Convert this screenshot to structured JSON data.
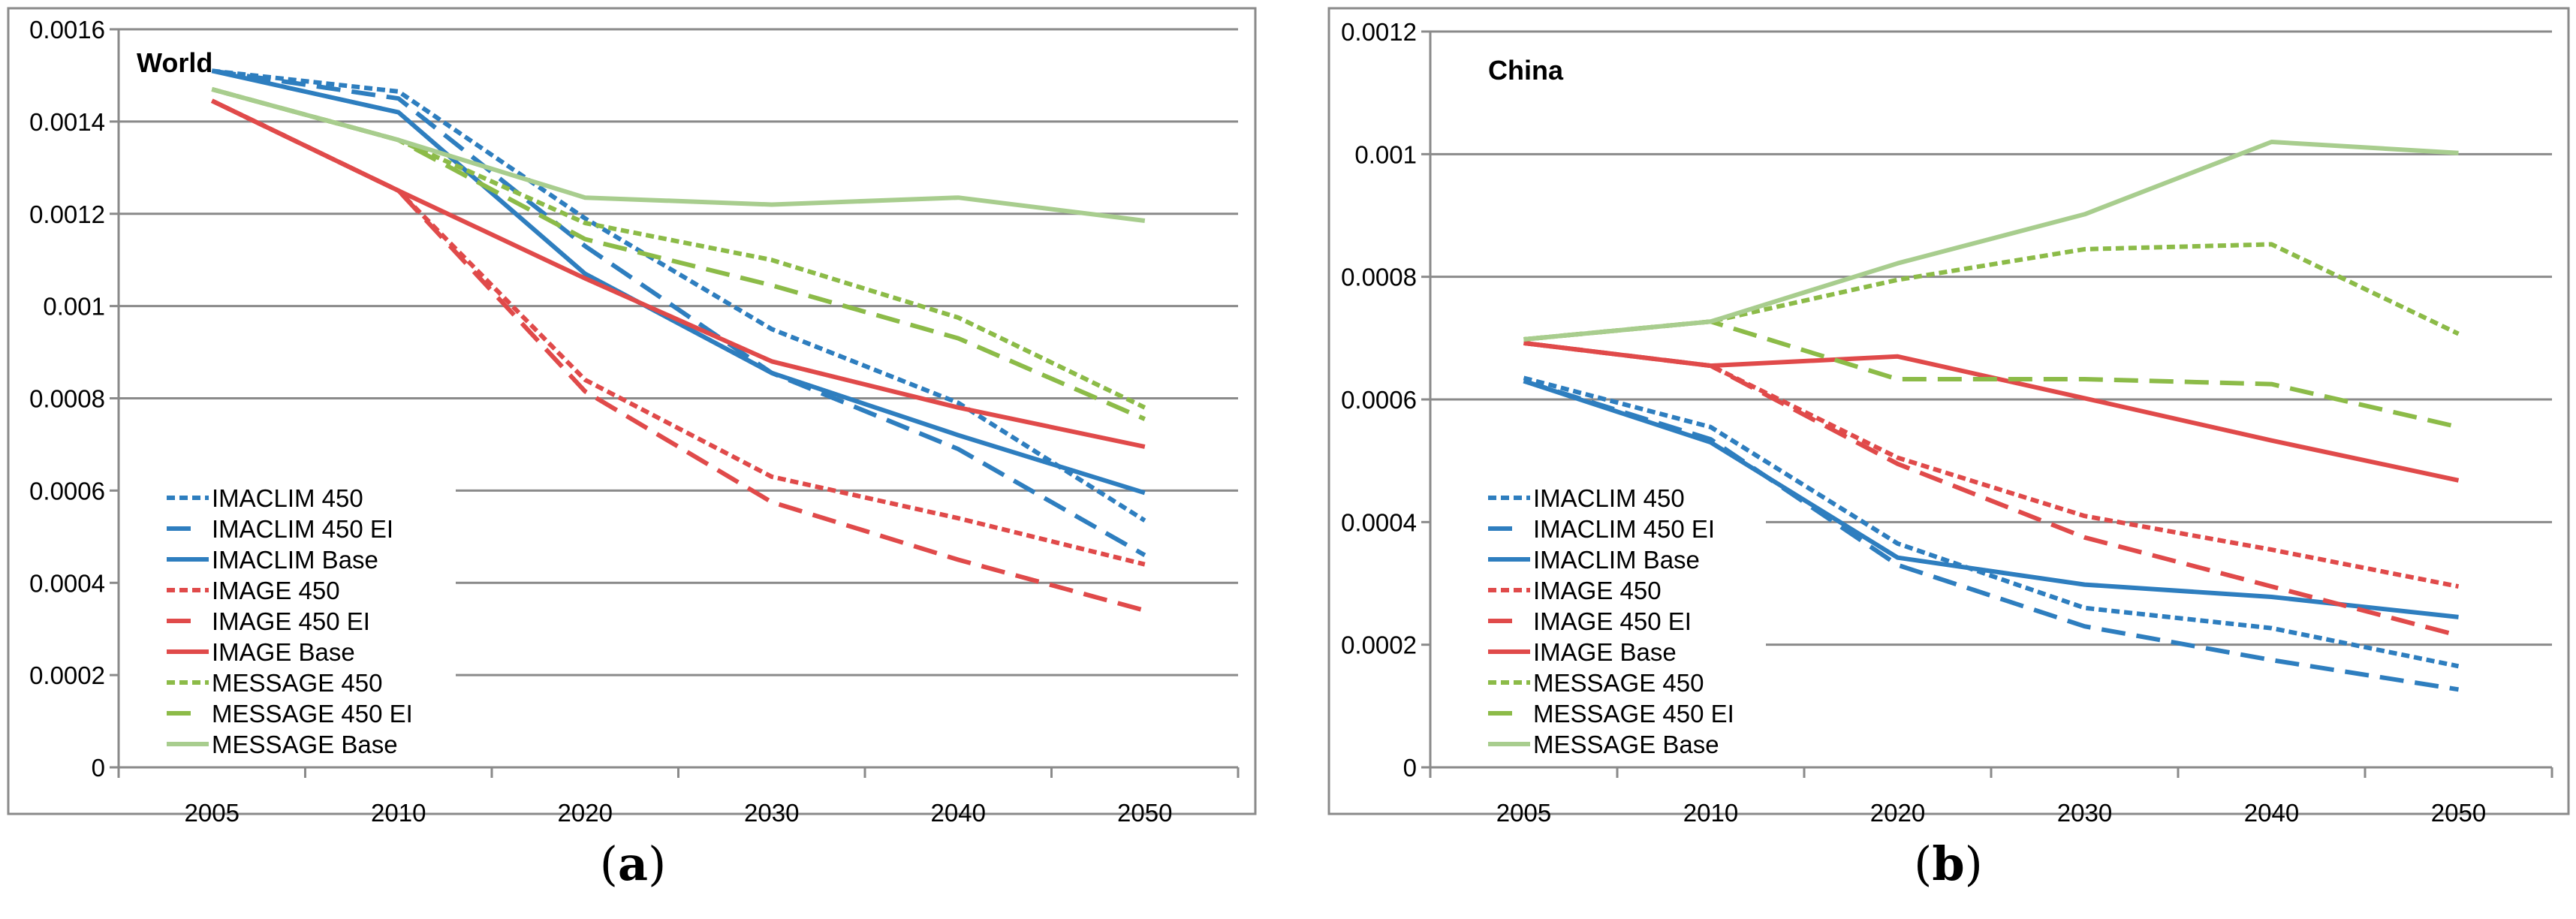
{
  "chart_data": [
    {
      "type": "line",
      "panel": "a",
      "title": "World",
      "panel_label": {
        "open": "(",
        "letter": "a",
        "close": ")"
      },
      "xlabel": "",
      "ylabel": "",
      "categories": [
        "2005",
        "2010",
        "2020",
        "2030",
        "2040",
        "2050"
      ],
      "ylim": [
        0,
        0.0016
      ],
      "yticks": [
        0,
        0.0002,
        0.0004,
        0.0006,
        0.0008,
        0.001,
        0.0012,
        0.0014,
        0.0016
      ],
      "ytick_labels": [
        "0",
        "0.0002",
        "0.0004",
        "0.0006",
        "0.0008",
        "0.001",
        "0.0012",
        "0.0014",
        "0.0016"
      ],
      "grid": true,
      "legend_position": "bottom-left",
      "series": [
        {
          "name": "IMACLIM 450",
          "color": "#2e7ebf",
          "style": "dotted",
          "values": [
            0.00151,
            0.001465,
            0.00119,
            0.00095,
            0.00079,
            0.000535
          ]
        },
        {
          "name": "IMACLIM 450 EI",
          "color": "#2e7ebf",
          "style": "dashed",
          "values": [
            0.00151,
            0.00145,
            0.00113,
            0.000855,
            0.00069,
            0.00046
          ]
        },
        {
          "name": "IMACLIM Base",
          "color": "#2e7ebf",
          "style": "solid",
          "values": [
            0.00151,
            0.00142,
            0.00107,
            0.000855,
            0.00072,
            0.000595
          ]
        },
        {
          "name": "IMAGE 450",
          "color": "#e04a4a",
          "style": "dotted",
          "values": [
            0.001445,
            0.00125,
            0.00084,
            0.00063,
            0.00054,
            0.00044
          ]
        },
        {
          "name": "IMAGE 450 EI",
          "color": "#e04a4a",
          "style": "dashed",
          "values": [
            0.001445,
            0.00125,
            0.000815,
            0.000575,
            0.00045,
            0.00034
          ]
        },
        {
          "name": "IMAGE Base",
          "color": "#e04a4a",
          "style": "solid",
          "values": [
            0.001445,
            0.00125,
            0.00106,
            0.00088,
            0.00078,
            0.000695
          ]
        },
        {
          "name": "MESSAGE 450",
          "color": "#8cbb48",
          "style": "dotted",
          "values": [
            0.00147,
            0.00136,
            0.00118,
            0.0011,
            0.000975,
            0.00078
          ]
        },
        {
          "name": "MESSAGE 450 EI",
          "color": "#8cbb48",
          "style": "dashed",
          "values": [
            0.00147,
            0.00136,
            0.001145,
            0.001045,
            0.00093,
            0.000755
          ]
        },
        {
          "name": "MESSAGE Base",
          "color": "#a8cd8e",
          "style": "solid",
          "values": [
            0.00147,
            0.00136,
            0.001235,
            0.00122,
            0.001235,
            0.001185
          ]
        }
      ]
    },
    {
      "type": "line",
      "panel": "b",
      "title": "China",
      "panel_label": {
        "open": "(",
        "letter": "b",
        "close": ")"
      },
      "xlabel": "",
      "ylabel": "",
      "categories": [
        "2005",
        "2010",
        "2020",
        "2030",
        "2040",
        "2050"
      ],
      "ylim": [
        0,
        0.0012
      ],
      "yticks": [
        0,
        0.0002,
        0.0004,
        0.0006,
        0.0008,
        0.001,
        0.0012
      ],
      "ytick_labels": [
        "0",
        "0.0002",
        "0.0004",
        "0.0006",
        "0.0008",
        "0.001",
        "0.0012"
      ],
      "grid": true,
      "legend_position": "bottom-left",
      "series": [
        {
          "name": "IMACLIM 450",
          "color": "#2e7ebf",
          "style": "dotted",
          "values": [
            0.000635,
            0.000555,
            0.000365,
            0.00026,
            0.000227,
            0.000165
          ]
        },
        {
          "name": "IMACLIM 450 EI",
          "color": "#2e7ebf",
          "style": "dashed",
          "values": [
            0.00063,
            0.000535,
            0.00033,
            0.00023,
            0.000175,
            0.000127
          ]
        },
        {
          "name": "IMACLIM Base",
          "color": "#2e7ebf",
          "style": "solid",
          "values": [
            0.00063,
            0.00053,
            0.000342,
            0.000298,
            0.000278,
            0.000245
          ]
        },
        {
          "name": "IMAGE 450",
          "color": "#e04a4a",
          "style": "dotted",
          "values": [
            0.000692,
            0.000655,
            0.000505,
            0.00041,
            0.000355,
            0.000295
          ]
        },
        {
          "name": "IMAGE 450 EI",
          "color": "#e04a4a",
          "style": "dashed",
          "values": [
            0.000692,
            0.000655,
            0.000495,
            0.000375,
            0.000295,
            0.000215
          ]
        },
        {
          "name": "IMAGE Base",
          "color": "#e04a4a",
          "style": "solid",
          "values": [
            0.000692,
            0.000655,
            0.00067,
            0.000602,
            0.000533,
            0.000468
          ]
        },
        {
          "name": "MESSAGE 450",
          "color": "#8cbb48",
          "style": "dotted",
          "values": [
            0.000698,
            0.000727,
            0.000795,
            0.000845,
            0.000853,
            0.000707
          ]
        },
        {
          "name": "MESSAGE 450 EI",
          "color": "#8cbb48",
          "style": "dashed",
          "values": [
            0.000698,
            0.000727,
            0.000633,
            0.000633,
            0.000625,
            0.000555
          ]
        },
        {
          "name": "MESSAGE Base",
          "color": "#a8cd8e",
          "style": "solid",
          "values": [
            0.000698,
            0.000727,
            0.000822,
            0.000902,
            0.00102,
            0.001002
          ]
        }
      ]
    }
  ]
}
